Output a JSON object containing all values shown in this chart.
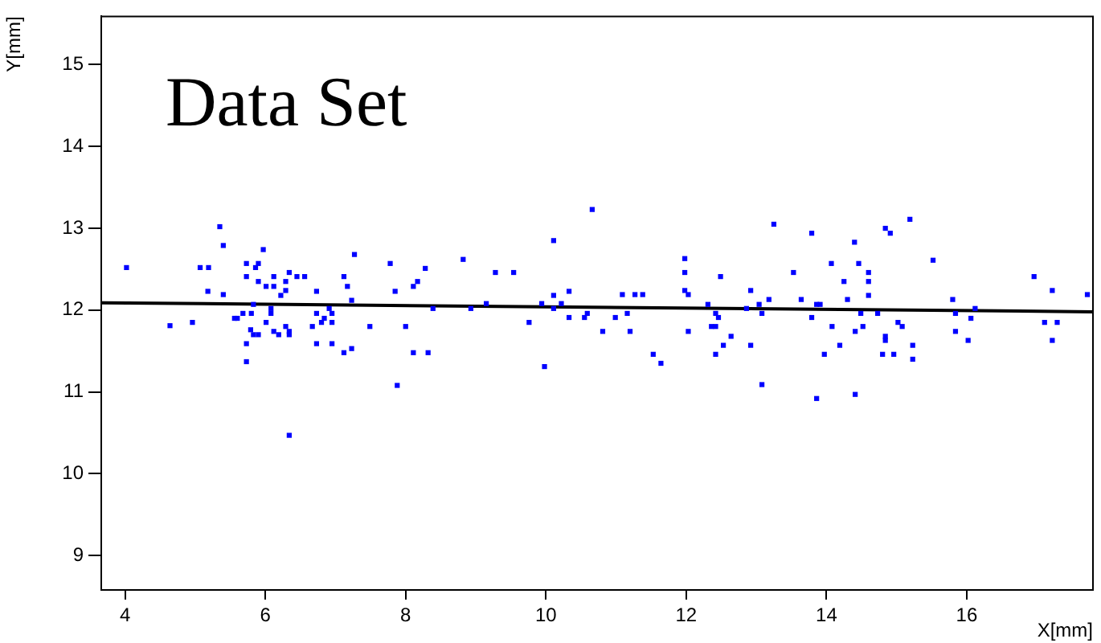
{
  "chart_data": {
    "type": "scatter",
    "title": "Data Set",
    "xlabel": "X[mm]",
    "ylabel": "Y[mm]",
    "xlim": [
      3.66,
      17.8
    ],
    "ylim": [
      8.58,
      15.59
    ],
    "xticks": [
      4,
      6,
      8,
      10,
      12,
      14,
      16
    ],
    "yticks": [
      9,
      10,
      11,
      12,
      13,
      14,
      15
    ],
    "grid": false,
    "legend": false,
    "series": [
      {
        "type": "scatter",
        "color": "#0000ff",
        "marker": "square",
        "x": [
          4.02,
          5.35,
          5.4,
          5.07,
          5.19,
          5.97,
          7.27,
          5.73,
          5.9,
          5.86,
          5.18,
          5.4,
          5.73,
          6.12,
          6.34,
          6.45,
          6.56,
          7.12,
          5.9,
          6.29,
          6.01,
          6.12,
          7.17,
          6.29,
          6.73,
          6.22,
          7.23,
          5.83,
          6.08,
          6.08,
          6.91,
          5.68,
          5.8,
          6.73,
          6.95,
          5.56,
          5.6,
          6.84,
          4.64,
          4.96,
          6.01,
          6.8,
          6.95,
          6.29,
          6.67,
          5.79,
          6.12,
          6.34,
          6.34,
          5.83,
          5.9,
          6.19,
          5.73,
          6.73,
          6.95,
          7.12,
          7.23,
          5.73,
          6.34,
          10.66,
          10.11,
          7.78,
          8.28,
          8.82,
          9.28,
          9.54,
          8.17,
          8.11,
          7.85,
          10.11,
          10.33,
          8.39,
          8.93,
          9.15,
          9.94,
          10.22,
          10.11,
          10.59,
          7.49,
          8.0,
          9.76,
          10.33,
          10.55,
          10.99,
          10.81,
          8.11,
          8.32,
          9.98,
          7.88,
          13.25,
          13.79,
          14.4,
          11.98,
          11.98,
          12.49,
          14.07,
          14.46,
          13.53,
          14.25,
          14.6,
          14.6,
          14.6,
          11.09,
          11.27,
          11.38,
          11.98,
          12.03,
          12.92,
          13.18,
          13.64,
          14.3,
          12.31,
          13.04,
          13.86,
          13.91,
          12.42,
          12.86,
          13.08,
          14.49,
          11.16,
          12.46,
          13.79,
          11.2,
          12.03,
          12.36,
          12.42,
          14.08,
          14.52,
          14.41,
          12.64,
          12.53,
          12.92,
          14.19,
          11.53,
          11.64,
          12.42,
          13.97,
          13.08,
          13.86,
          14.41,
          15.19,
          14.84,
          14.91,
          15.52,
          16.96,
          17.22,
          17.72,
          15.8,
          14.73,
          15.84,
          16.12,
          16.06,
          15.02,
          15.08,
          17.11,
          17.29,
          14.84,
          14.84,
          15.84,
          16.02,
          15.23,
          17.22,
          14.8,
          14.96,
          15.23
        ],
        "values": [
          12.52,
          13.02,
          12.79,
          12.52,
          12.52,
          12.74,
          12.68,
          12.57,
          12.57,
          12.52,
          12.23,
          12.19,
          12.41,
          12.41,
          12.46,
          12.41,
          12.41,
          12.41,
          12.35,
          12.35,
          12.29,
          12.29,
          12.29,
          12.24,
          12.23,
          12.18,
          12.12,
          12.07,
          12.02,
          11.96,
          12.02,
          11.96,
          11.96,
          11.96,
          11.96,
          11.9,
          11.9,
          11.9,
          11.81,
          11.85,
          11.85,
          11.85,
          11.85,
          11.8,
          11.8,
          11.76,
          11.74,
          11.74,
          11.7,
          11.7,
          11.7,
          11.7,
          11.59,
          11.59,
          11.59,
          11.48,
          11.53,
          11.37,
          10.47,
          13.23,
          12.85,
          12.57,
          12.51,
          12.62,
          12.46,
          12.46,
          12.35,
          12.29,
          12.23,
          12.18,
          12.23,
          12.02,
          12.02,
          12.08,
          12.08,
          12.08,
          12.02,
          11.96,
          11.8,
          11.8,
          11.85,
          11.91,
          11.91,
          11.91,
          11.74,
          11.48,
          11.48,
          11.31,
          11.08,
          13.05,
          12.94,
          12.83,
          12.63,
          12.46,
          12.41,
          12.57,
          12.57,
          12.46,
          12.35,
          12.46,
          12.35,
          12.18,
          12.19,
          12.19,
          12.19,
          12.24,
          12.19,
          12.24,
          12.13,
          12.13,
          12.13,
          12.07,
          12.07,
          12.07,
          12.07,
          11.96,
          12.02,
          11.96,
          11.96,
          11.96,
          11.91,
          11.91,
          11.74,
          11.74,
          11.8,
          11.8,
          11.8,
          11.8,
          11.74,
          11.68,
          11.57,
          11.57,
          11.57,
          11.46,
          11.35,
          11.46,
          11.46,
          11.09,
          10.92,
          10.97,
          13.11,
          13.0,
          12.94,
          12.61,
          12.41,
          12.24,
          12.19,
          12.13,
          11.96,
          11.96,
          12.02,
          11.9,
          11.85,
          11.8,
          11.85,
          11.85,
          11.68,
          11.63,
          11.74,
          11.63,
          11.57,
          11.63,
          11.46,
          11.46,
          11.4
        ]
      },
      {
        "type": "line",
        "color": "#000000",
        "marker": "none",
        "x": [
          3.66,
          17.8
        ],
        "values": [
          12.09,
          11.98
        ]
      }
    ]
  }
}
